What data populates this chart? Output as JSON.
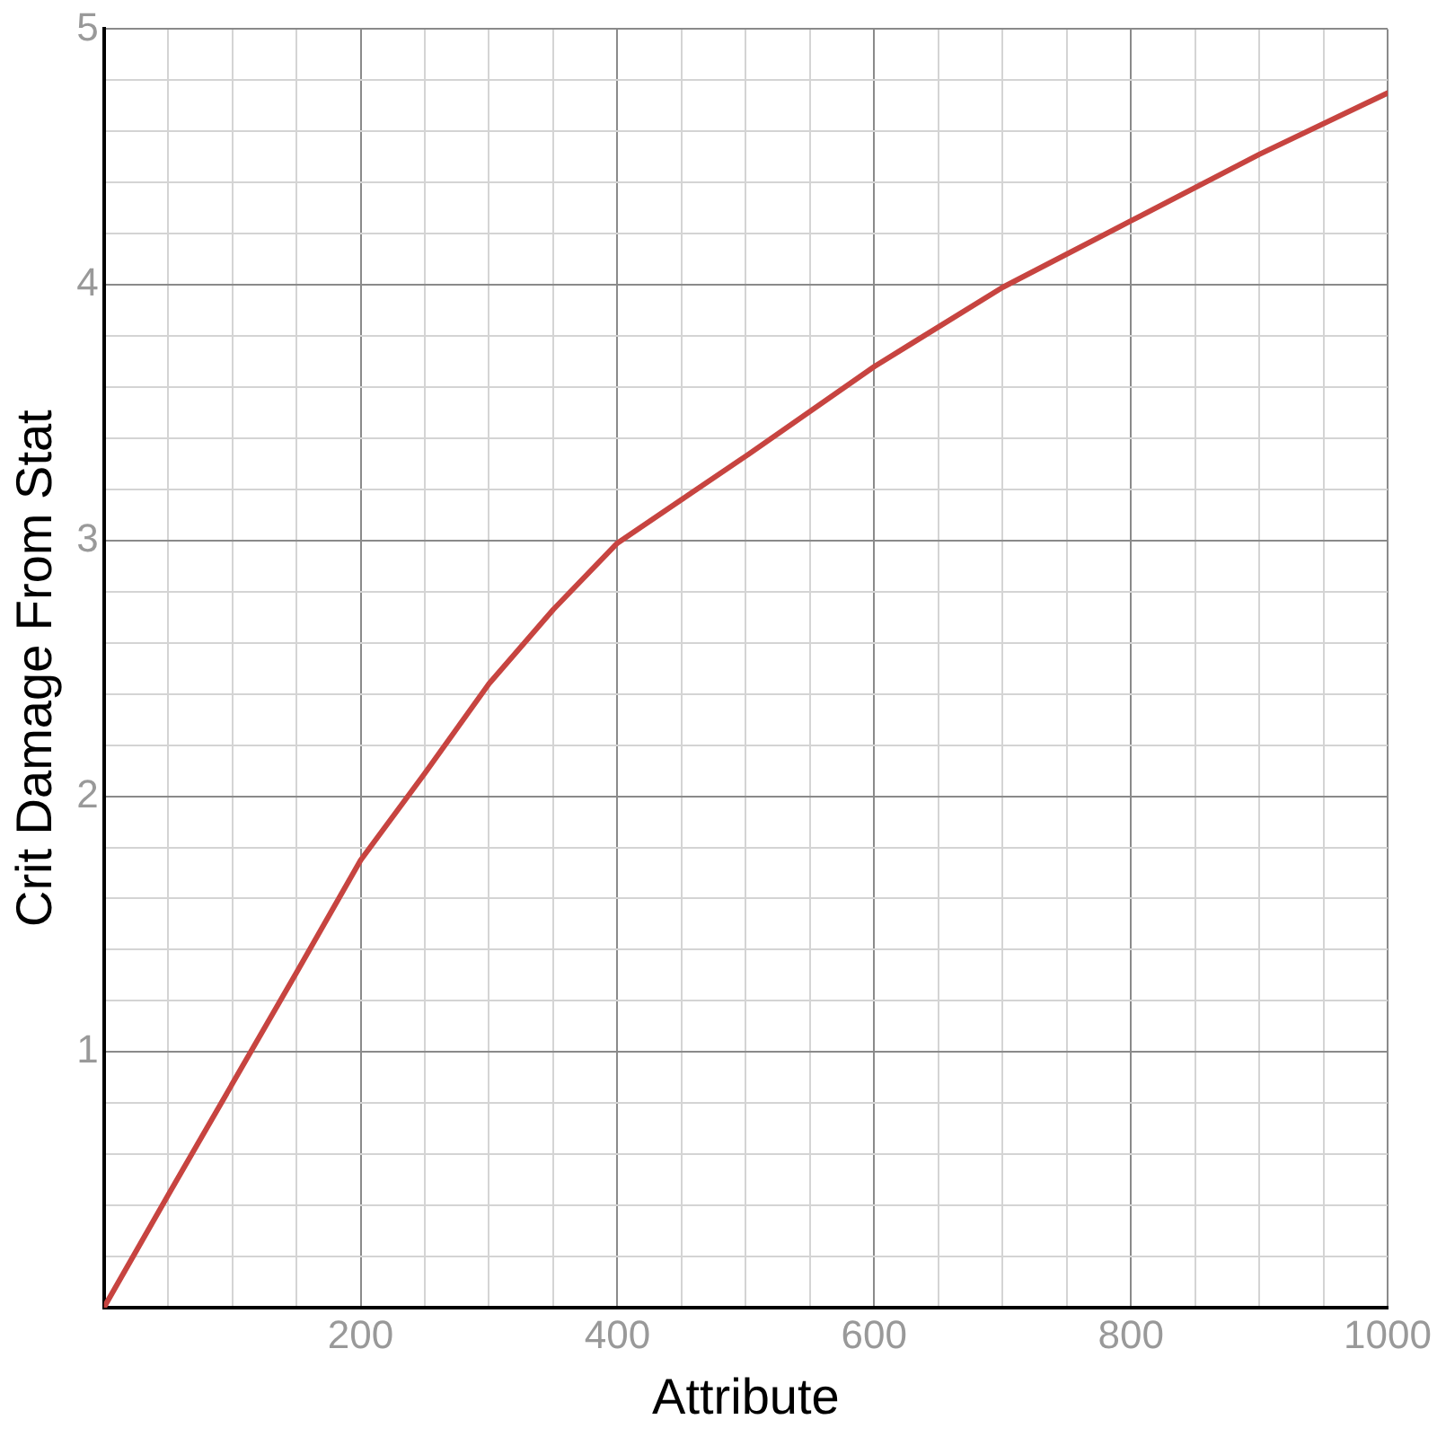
{
  "chart_data": {
    "type": "line",
    "xlabel": "Attribute",
    "ylabel": "Crit Damage From Stat",
    "x": [
      0,
      50,
      100,
      150,
      200,
      250,
      300,
      350,
      400,
      450,
      500,
      600,
      700,
      800,
      900,
      1000
    ],
    "series": [
      {
        "color": "#c74440",
        "values": [
          0,
          0.44,
          0.875,
          1.31,
          1.75,
          2.09,
          2.44,
          2.73,
          2.99,
          3.16,
          3.33,
          3.68,
          3.99,
          4.25,
          4.51,
          4.75
        ]
      }
    ],
    "xlim": [
      0,
      1000
    ],
    "xticks": [
      {
        "value": 50,
        "label": null
      },
      {
        "value": 100,
        "label": null
      },
      {
        "value": 150,
        "label": null
      },
      200,
      {
        "value": 250,
        "label": null
      },
      {
        "value": 300,
        "label": null
      },
      {
        "value": 350,
        "label": null
      },
      400,
      {
        "value": 450,
        "label": null
      },
      {
        "value": 500,
        "label": null
      },
      {
        "value": 550,
        "label": null
      },
      600,
      {
        "value": 650,
        "label": null
      },
      {
        "value": 700,
        "label": null
      },
      {
        "value": 750,
        "label": null
      },
      800,
      {
        "value": 850,
        "label": null
      },
      {
        "value": 900,
        "label": null
      },
      {
        "value": 950,
        "label": null
      },
      1000
    ],
    "ylim": [
      0,
      5
    ],
    "yticks": [
      {
        "value": 0.2,
        "label": null
      },
      {
        "value": 0.4,
        "label": null
      },
      {
        "value": 0.6,
        "label": null
      },
      {
        "value": 0.8,
        "label": null
      },
      1,
      {
        "value": 1.2,
        "label": null
      },
      {
        "value": 1.4,
        "label": null
      },
      {
        "value": 1.6,
        "label": null
      },
      {
        "value": 1.8,
        "label": null
      },
      2,
      {
        "value": 2.2,
        "label": null
      },
      {
        "value": 2.4,
        "label": null
      },
      {
        "value": 2.6,
        "label": null
      },
      {
        "value": 2.8,
        "label": null
      },
      3,
      {
        "value": 3.2,
        "label": null
      },
      {
        "value": 3.4,
        "label": null
      },
      {
        "value": 3.6,
        "label": null
      },
      {
        "value": 3.8,
        "label": null
      },
      4,
      {
        "value": 4.2,
        "label": null
      },
      {
        "value": 4.4,
        "label": null
      },
      {
        "value": 4.6,
        "label": null
      },
      {
        "value": 4.8,
        "label": null
      },
      5
    ],
    "grid": true,
    "marker": "none",
    "line_style": "solid",
    "legend": false
  }
}
